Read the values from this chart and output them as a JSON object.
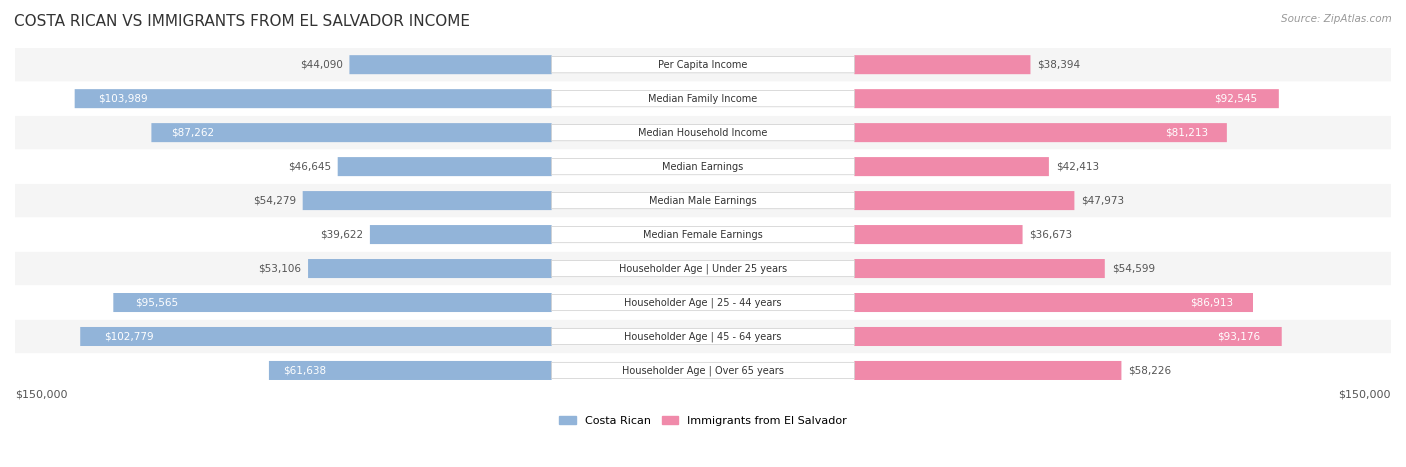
{
  "title": "COSTA RICAN VS IMMIGRANTS FROM EL SALVADOR INCOME",
  "source": "Source: ZipAtlas.com",
  "categories": [
    "Per Capita Income",
    "Median Family Income",
    "Median Household Income",
    "Median Earnings",
    "Median Male Earnings",
    "Median Female Earnings",
    "Householder Age | Under 25 years",
    "Householder Age | 25 - 44 years",
    "Householder Age | 45 - 64 years",
    "Householder Age | Over 65 years"
  ],
  "costa_rican": [
    44090,
    103989,
    87262,
    46645,
    54279,
    39622,
    53106,
    95565,
    102779,
    61638
  ],
  "el_salvador": [
    38394,
    92545,
    81213,
    42413,
    47973,
    36673,
    54599,
    86913,
    93176,
    58226
  ],
  "max_val": 150000,
  "blue_color": "#92b4d9",
  "pink_color": "#f08aaa",
  "blue_dark": "#6699cc",
  "pink_dark": "#f06090",
  "blue_label_bg": "#92b4d9",
  "pink_label_bg": "#f08aaa",
  "bg_row_color": "#f0f0f0",
  "legend_blue": "#92b4d9",
  "legend_pink": "#f08aaa",
  "label_inside_threshold": 60000,
  "axis_label_left": "$150,000",
  "axis_label_right": "$150,000"
}
